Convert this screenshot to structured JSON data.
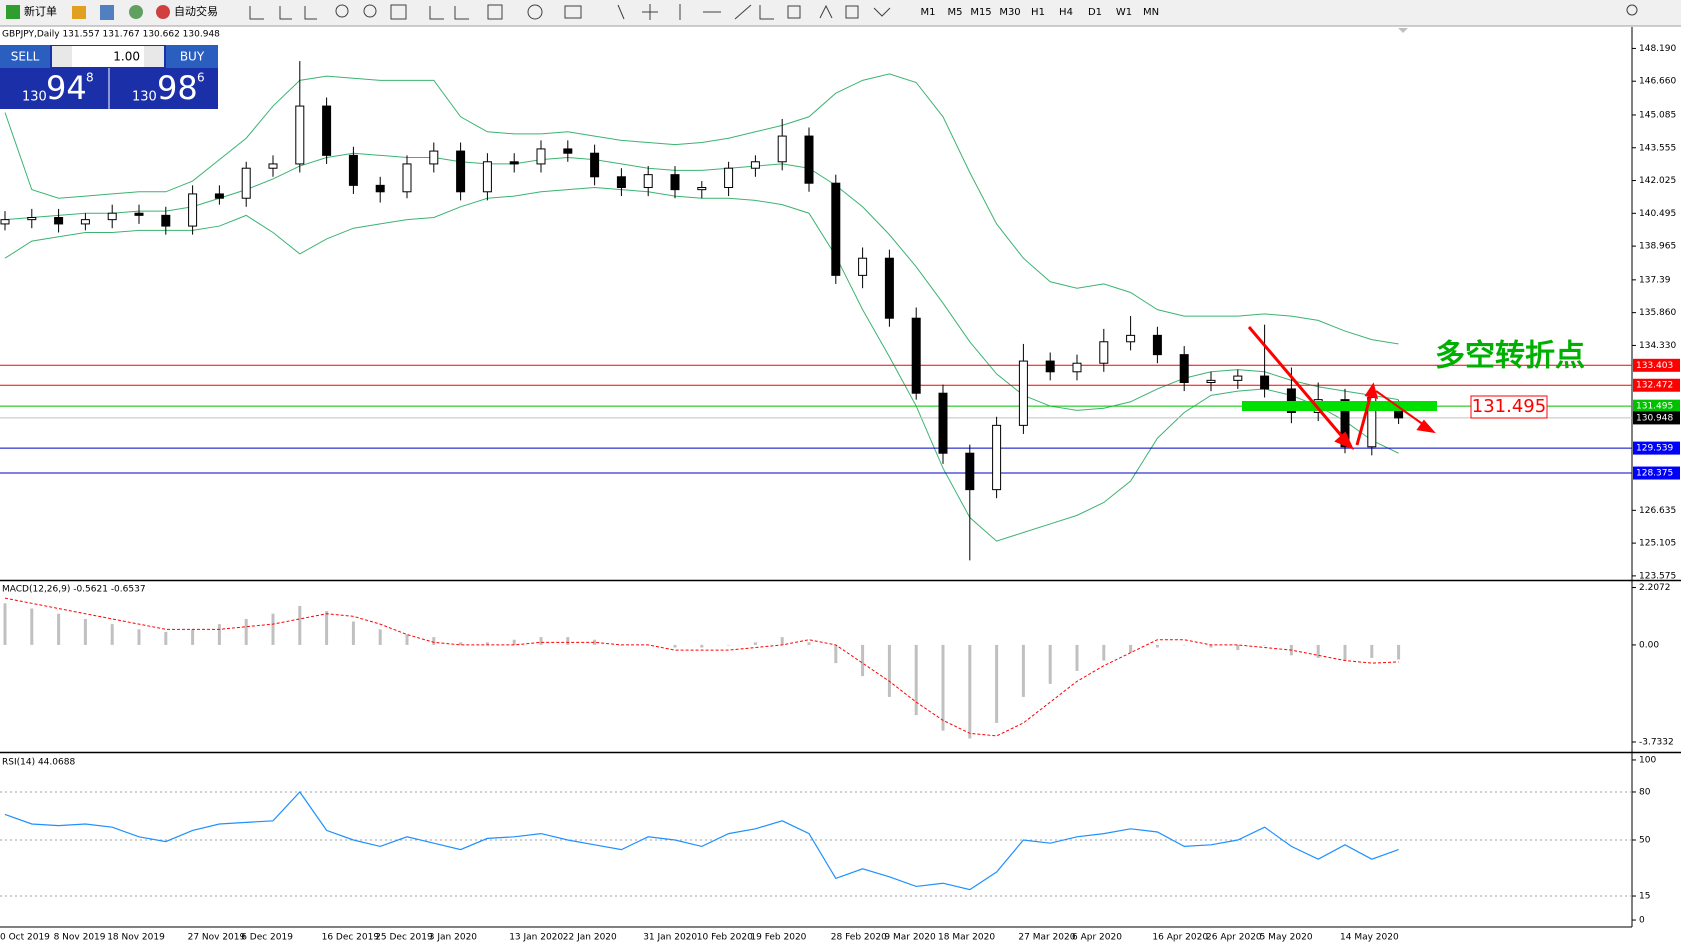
{
  "toolbar": {
    "new_order": "新订单",
    "auto_trading": "自动交易",
    "timeframes": [
      "M1",
      "M5",
      "M15",
      "M30",
      "H1",
      "H4",
      "D1",
      "W1",
      "MN"
    ]
  },
  "trade_panel": {
    "sell": "SELL",
    "lots": "1.00",
    "buy": "BUY",
    "sell_price": {
      "big": "130",
      "pips": "94",
      "point": "8"
    },
    "buy_price": {
      "big": "130",
      "pips": "98",
      "point": "6"
    }
  },
  "chart_data": [
    {
      "type": "candlestick",
      "title": "GBPJPY,Daily  131.557 131.767 130.662 130.948",
      "categories": [
        "0 Oct 2019",
        null,
        "8 Nov 2019",
        null,
        "18 Nov 2019",
        null,
        null,
        "27 Nov 2019",
        null,
        "6 Dec 2019",
        null,
        null,
        "16 Dec 2019",
        null,
        "25 Dec 2019",
        null,
        "3 Jan 2020",
        null,
        null,
        "13 Jan 2020",
        null,
        "22 Jan 2020",
        null,
        null,
        "31 Jan 2020",
        null,
        "10 Feb 2020",
        null,
        "19 Feb 2020",
        null,
        null,
        "28 Feb 2020",
        null,
        "9 Mar 2020",
        null,
        "18 Mar 2020",
        null,
        null,
        "27 Mar 2020",
        null,
        "6 Apr 2020",
        null,
        null,
        "16 Apr 2020",
        null,
        "26 Apr 2020",
        null,
        "5 May 2020",
        null,
        null,
        "14 May 2020",
        null,
        null
      ],
      "open": [
        140.0,
        140.2,
        140.3,
        140.0,
        140.2,
        140.5,
        140.4,
        139.9,
        141.4,
        141.2,
        142.6,
        142.8,
        145.5,
        143.2,
        141.8,
        141.5,
        142.8,
        143.4,
        141.5,
        142.9,
        142.8,
        143.5,
        143.3,
        142.2,
        141.7,
        142.3,
        141.6,
        141.7,
        142.6,
        142.9,
        144.1,
        141.9,
        137.6,
        138.4,
        135.6,
        132.1,
        129.3,
        127.6,
        130.6,
        133.6,
        133.1,
        133.5,
        134.5,
        134.8,
        133.9,
        132.6,
        132.7,
        132.9,
        132.3,
        131.2,
        131.8,
        129.6,
        131.557
      ],
      "high": [
        140.6,
        140.7,
        140.7,
        140.5,
        140.9,
        140.9,
        140.8,
        141.8,
        141.8,
        142.9,
        143.2,
        147.6,
        145.9,
        143.6,
        142.2,
        143.2,
        143.8,
        143.8,
        143.3,
        143.3,
        143.9,
        143.9,
        143.7,
        142.6,
        142.7,
        142.7,
        142.0,
        142.9,
        143.2,
        144.9,
        144.5,
        142.3,
        138.9,
        138.8,
        136.1,
        132.5,
        129.7,
        131.0,
        134.4,
        134.0,
        133.9,
        135.1,
        135.7,
        135.2,
        134.3,
        133.1,
        133.2,
        135.3,
        133.3,
        132.6,
        132.3,
        132.2,
        131.767
      ],
      "low": [
        139.7,
        139.8,
        139.6,
        139.7,
        139.8,
        140.0,
        139.5,
        139.5,
        140.9,
        140.8,
        142.2,
        142.4,
        142.8,
        141.4,
        141.0,
        141.2,
        142.4,
        141.1,
        141.1,
        142.4,
        142.4,
        142.9,
        141.8,
        141.3,
        141.3,
        141.2,
        141.2,
        141.3,
        142.2,
        142.5,
        141.5,
        137.2,
        137.0,
        135.2,
        131.8,
        128.8,
        124.3,
        127.2,
        130.2,
        132.7,
        132.7,
        133.1,
        134.1,
        133.5,
        132.2,
        132.2,
        132.3,
        131.9,
        130.7,
        130.8,
        129.3,
        129.2,
        130.662
      ],
      "close": [
        140.2,
        140.3,
        140.0,
        140.2,
        140.5,
        140.4,
        139.9,
        141.4,
        141.2,
        142.6,
        142.8,
        145.5,
        143.2,
        141.8,
        141.5,
        142.8,
        143.4,
        141.5,
        142.9,
        142.8,
        143.5,
        143.3,
        142.2,
        141.7,
        142.3,
        141.6,
        141.7,
        142.6,
        142.9,
        144.1,
        141.9,
        137.6,
        138.4,
        135.6,
        132.1,
        129.3,
        127.6,
        130.6,
        133.6,
        133.1,
        133.5,
        134.5,
        134.8,
        133.9,
        132.6,
        132.7,
        132.9,
        132.3,
        131.2,
        131.8,
        129.6,
        131.9,
        130.948
      ],
      "bands": {
        "color": "#3cb371",
        "upper": [
          145.2,
          141.6,
          141.2,
          141.3,
          141.4,
          141.5,
          141.5,
          142.0,
          143.0,
          144.0,
          145.5,
          146.7,
          146.9,
          146.8,
          146.7,
          146.7,
          146.7,
          145.0,
          144.3,
          144.2,
          144.2,
          144.3,
          144.1,
          143.9,
          143.8,
          143.7,
          143.8,
          144.0,
          144.3,
          144.6,
          145.0,
          146.1,
          146.7,
          147.0,
          146.6,
          145.0,
          142.4,
          140.0,
          138.4,
          137.3,
          137.0,
          137.2,
          136.8,
          136.0,
          135.7,
          135.7,
          135.7,
          135.8,
          135.7,
          135.5,
          135.0,
          134.6,
          134.4
        ],
        "middle": [
          140.2,
          140.3,
          140.4,
          140.5,
          140.5,
          140.6,
          140.6,
          140.8,
          141.2,
          141.6,
          142.1,
          142.7,
          143.1,
          143.3,
          143.2,
          143.1,
          143.1,
          142.9,
          142.8,
          142.8,
          143.0,
          143.1,
          143.0,
          142.8,
          142.6,
          142.5,
          142.5,
          142.6,
          142.7,
          142.8,
          142.6,
          141.8,
          140.8,
          139.5,
          138.0,
          136.3,
          134.5,
          133.0,
          132.0,
          131.5,
          131.3,
          131.4,
          131.7,
          132.3,
          132.8,
          133.1,
          133.2,
          133.1,
          132.7,
          132.4,
          132.2,
          132.0,
          131.8
        ],
        "lower": [
          138.4,
          139.2,
          139.4,
          139.6,
          139.6,
          139.7,
          139.7,
          139.7,
          139.9,
          140.4,
          139.6,
          138.6,
          139.3,
          139.8,
          140.0,
          140.2,
          140.3,
          140.8,
          141.2,
          141.3,
          141.5,
          141.6,
          141.7,
          141.6,
          141.5,
          141.3,
          141.2,
          141.2,
          141.1,
          140.9,
          140.5,
          138.5,
          136.0,
          133.8,
          131.5,
          128.6,
          126.3,
          125.2,
          125.6,
          126.0,
          126.4,
          127.0,
          128.0,
          130.0,
          131.2,
          132.0,
          132.2,
          132.3,
          132.0,
          131.5,
          130.8,
          129.9,
          129.3
        ]
      },
      "ylim": [
        123.43,
        149.19
      ],
      "yticks": [
        {
          "value": 148.19,
          "label": "148.190"
        },
        {
          "value": 146.66,
          "label": "146.660"
        },
        145.085,
        143.555,
        142.025,
        140.495,
        138.965,
        137.39,
        {
          "value": 135.86,
          "label": "135.860"
        },
        {
          "value": 134.33,
          "label": "134.330"
        },
        126.635,
        125.105,
        123.575
      ],
      "levels": [
        {
          "value": 133.403,
          "color": "#ff0000",
          "line_color": "#ff0000"
        },
        {
          "value": 132.472,
          "color": "#ff0000",
          "line_color": "#ff0000"
        },
        {
          "value": 131.495,
          "color": "#00c000",
          "line_color": "#00c000"
        },
        {
          "value": 130.948,
          "color": "#000000",
          "line_color": "#c0c0c0"
        },
        {
          "value": 129.539,
          "color": "#0000ff",
          "line_color": "#0000c0"
        },
        {
          "value": 128.375,
          "color": "#0000ff",
          "line_color": "#0000c0"
        }
      ],
      "annotation": "多空转折点",
      "callout": "131.495"
    },
    {
      "type": "macd",
      "title": "MACD(12,26,9) -0.5621 -0.6537",
      "histogram": [
        1.6,
        1.4,
        1.2,
        1.0,
        0.8,
        0.6,
        0.5,
        0.6,
        0.8,
        1.0,
        1.2,
        1.5,
        1.3,
        0.9,
        0.6,
        0.4,
        0.3,
        0.1,
        0.1,
        0.2,
        0.3,
        0.3,
        0.2,
        0.0,
        0.0,
        -0.1,
        -0.1,
        0.0,
        0.1,
        0.3,
        0.1,
        -0.7,
        -1.2,
        -2.0,
        -2.7,
        -3.3,
        -3.6,
        -3.0,
        -2.0,
        -1.5,
        -1.0,
        -0.6,
        -0.3,
        -0.1,
        0.0,
        -0.1,
        -0.2,
        0.0,
        -0.4,
        -0.5,
        -0.6,
        -0.5,
        -0.5621
      ],
      "signal": [
        1.8,
        1.6,
        1.4,
        1.2,
        1.0,
        0.8,
        0.6,
        0.6,
        0.6,
        0.7,
        0.8,
        1.0,
        1.2,
        1.1,
        0.8,
        0.4,
        0.1,
        0.0,
        0.0,
        0.0,
        0.1,
        0.1,
        0.1,
        0.0,
        0.0,
        -0.2,
        -0.2,
        -0.2,
        -0.1,
        0.0,
        0.2,
        0.0,
        -0.7,
        -1.4,
        -2.2,
        -2.9,
        -3.4,
        -3.5,
        -3.0,
        -2.2,
        -1.4,
        -0.8,
        -0.3,
        0.2,
        0.2,
        0.0,
        0.0,
        -0.1,
        -0.2,
        -0.4,
        -0.6,
        -0.7,
        -0.6537
      ],
      "histogram_color": "#c0c0c0",
      "signal_color": "#ff0000",
      "ylim": [
        -4.08,
        2.42
      ],
      "yticks": [
        2.2072,
        {
          "value": 0,
          "label": "0.00"
        },
        -3.7332
      ]
    },
    {
      "type": "line",
      "title": "RSI(14) 44.0688",
      "values": [
        66,
        60,
        59,
        60,
        58,
        52,
        49,
        56,
        60,
        61,
        62,
        80,
        56,
        50,
        46,
        52,
        48,
        44,
        51,
        52,
        54,
        50,
        47,
        44,
        52,
        50,
        46,
        54,
        57,
        62,
        54,
        26,
        32,
        27,
        21,
        23,
        19,
        30,
        50,
        48,
        52,
        54,
        57,
        55,
        46,
        47,
        50,
        58,
        46,
        38,
        47,
        38,
        44.0688
      ],
      "color": "#1e90ff",
      "ylim": [
        -3.1,
        103.1
      ],
      "yticks": [
        100,
        80,
        50,
        15,
        0
      ],
      "levels": [
        80,
        50,
        15
      ]
    }
  ]
}
